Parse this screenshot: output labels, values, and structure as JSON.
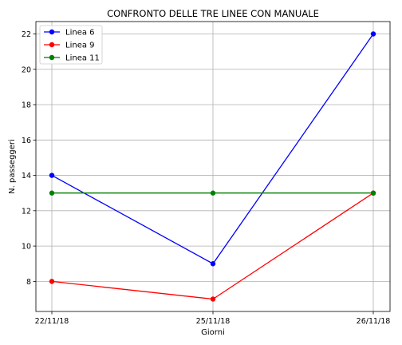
{
  "chart_data": {
    "type": "line",
    "title": "CONFRONTO DELLE TRE LINEE CON MANUALE",
    "xlabel": "Giorni",
    "ylabel": "N. passeggeri",
    "categories": [
      "22/11/18",
      "25/11/18",
      "26/11/18"
    ],
    "ylim": [
      6.3,
      22.7
    ],
    "yticks": [
      8,
      10,
      12,
      14,
      16,
      18,
      20,
      22
    ],
    "grid": true,
    "legend": "top-left",
    "series": [
      {
        "name": "Linea 6",
        "color": "#0000ff",
        "values": [
          14,
          9,
          22
        ]
      },
      {
        "name": "Linea 9",
        "color": "#ff0000",
        "values": [
          8,
          7,
          13
        ]
      },
      {
        "name": "Linea 11",
        "color": "#008000",
        "values": [
          13,
          13,
          13
        ]
      }
    ]
  }
}
